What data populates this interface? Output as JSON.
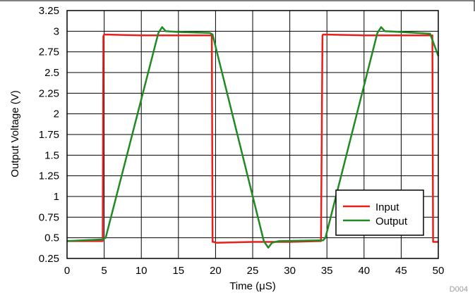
{
  "chart_data": {
    "type": "line",
    "xlabel": "Time (μS)",
    "ylabel": "Output Voltage (V)",
    "xlim": [
      0,
      50
    ],
    "ylim": [
      0.25,
      3.25
    ],
    "xticks": [
      0,
      5,
      10,
      15,
      20,
      25,
      30,
      35,
      40,
      45,
      50
    ],
    "yticks": [
      0.25,
      0.5,
      0.75,
      1,
      1.25,
      1.5,
      1.75,
      2,
      2.25,
      2.5,
      2.75,
      3,
      3.25
    ],
    "xtick_labels": [
      "0",
      "5",
      "10",
      "15",
      "20",
      "25",
      "30",
      "35",
      "40",
      "45",
      "50"
    ],
    "ytick_labels": [
      "0.25",
      "0.5",
      "0.75",
      "1",
      "1.25",
      "1.5",
      "1.75",
      "2",
      "2.25",
      "2.5",
      "2.75",
      "3",
      "3.25"
    ],
    "grid": true,
    "legend_position": "bottom-right",
    "watermark": "D004",
    "series": [
      {
        "name": "Input",
        "color": "#e8201c",
        "x": [
          0,
          4.7,
          4.8,
          4.9,
          5.0,
          10,
          15,
          19.5,
          19.6,
          19.8,
          20,
          25,
          30,
          34,
          34.2,
          34.4,
          34.5,
          40,
          45,
          49.2,
          49.3,
          49.5,
          50
        ],
        "y": [
          0.46,
          0.46,
          0.46,
          2.94,
          2.96,
          2.95,
          2.95,
          2.95,
          0.45,
          0.45,
          0.44,
          0.45,
          0.45,
          0.46,
          0.46,
          2.95,
          2.96,
          2.95,
          2.95,
          2.95,
          0.45,
          0.45,
          0.45
        ]
      },
      {
        "name": "Output",
        "color": "#1f8a22",
        "x": [
          0,
          4.7,
          5.2,
          12.3,
          12.8,
          13.3,
          15,
          19.2,
          19.6,
          26.5,
          27.1,
          27.6,
          28.5,
          34.5,
          34.8,
          41.8,
          42.3,
          42.8,
          45,
          48.9,
          50
        ],
        "y": [
          0.46,
          0.48,
          0.5,
          2.98,
          3.05,
          3.0,
          2.99,
          2.98,
          2.96,
          0.46,
          0.38,
          0.44,
          0.46,
          0.47,
          0.5,
          2.98,
          3.05,
          3.0,
          2.99,
          2.97,
          2.7
        ]
      }
    ]
  }
}
